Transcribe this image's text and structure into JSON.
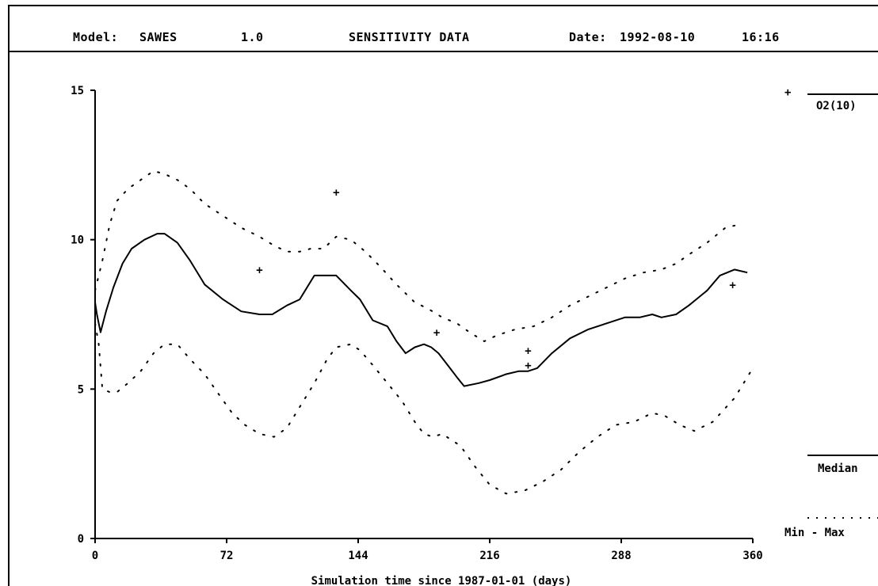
{
  "header": {
    "model_label": "Model:",
    "model_name": "SAWES",
    "version": "1.0",
    "title": "SENSITIVITY DATA",
    "date_label": "Date:",
    "date_value": "1992-08-10",
    "time_value": "16:16"
  },
  "chart_data": {
    "type": "line",
    "title": "SENSITIVITY DATA",
    "xlabel": "Simulation time since 1987-01-01 (days)",
    "ylabel": "",
    "xlim": [
      0,
      360
    ],
    "ylim": [
      0,
      15
    ],
    "xticks": [
      "0",
      "72",
      "144",
      "216",
      "288",
      "360"
    ],
    "yticks": [
      "0",
      "5",
      "10",
      "15"
    ],
    "grid": false,
    "legend_position": "right",
    "legend_entries": [
      {
        "label": "O2(10)",
        "marker": "+"
      },
      {
        "label": "Median",
        "style": "solid"
      },
      {
        "label": "Min - Max",
        "style": "dotted"
      }
    ],
    "series": [
      {
        "name": "Median",
        "style": "solid",
        "x": [
          0,
          1,
          3,
          6,
          10,
          15,
          20,
          27,
          34,
          38,
          45,
          52,
          60,
          70,
          80,
          90,
          97,
          105,
          112,
          120,
          127,
          132,
          140,
          145,
          152,
          160,
          165,
          170,
          175,
          180,
          184,
          188,
          193,
          198,
          202,
          210,
          216,
          225,
          232,
          237,
          242,
          250,
          260,
          270,
          280,
          290,
          298,
          305,
          310,
          318,
          325,
          335,
          342,
          350,
          357
        ],
        "y": [
          7.9,
          7.5,
          6.9,
          7.6,
          8.4,
          9.2,
          9.7,
          10.0,
          10.2,
          10.2,
          9.9,
          9.3,
          8.5,
          8.0,
          7.6,
          7.5,
          7.5,
          7.8,
          8.0,
          8.8,
          8.8,
          8.8,
          8.3,
          8.0,
          7.3,
          7.1,
          6.6,
          6.2,
          6.4,
          6.5,
          6.4,
          6.2,
          5.8,
          5.4,
          5.1,
          5.2,
          5.3,
          5.5,
          5.6,
          5.6,
          5.7,
          6.2,
          6.7,
          7.0,
          7.2,
          7.4,
          7.4,
          7.5,
          7.4,
          7.5,
          7.8,
          8.3,
          8.8,
          9.0,
          8.9
        ]
      },
      {
        "name": "Min",
        "style": "dotted",
        "x": [
          0,
          2,
          4,
          8,
          12,
          18,
          25,
          32,
          38,
          45,
          52,
          60,
          68,
          75,
          82,
          90,
          98,
          105,
          112,
          120,
          127,
          132,
          140,
          145,
          152,
          160,
          168,
          175,
          180,
          185,
          190,
          195,
          200,
          208,
          216,
          225,
          235,
          245,
          255,
          265,
          275,
          285,
          295,
          305,
          312,
          320,
          328,
          338,
          350,
          360
        ],
        "y": [
          7.2,
          6.5,
          5.0,
          4.9,
          4.9,
          5.2,
          5.6,
          6.2,
          6.5,
          6.5,
          6.0,
          5.5,
          4.8,
          4.2,
          3.8,
          3.5,
          3.4,
          3.7,
          4.4,
          5.2,
          6.0,
          6.4,
          6.5,
          6.3,
          5.8,
          5.2,
          4.6,
          3.9,
          3.5,
          3.4,
          3.5,
          3.3,
          3.1,
          2.4,
          1.8,
          1.5,
          1.6,
          1.9,
          2.3,
          2.9,
          3.4,
          3.8,
          3.9,
          4.2,
          4.1,
          3.8,
          3.6,
          3.9,
          4.7,
          5.7
        ]
      },
      {
        "name": "Max",
        "style": "dotted",
        "x": [
          0,
          4,
          8,
          12,
          18,
          25,
          32,
          38,
          45,
          52,
          60,
          70,
          80,
          90,
          98,
          105,
          112,
          118,
          125,
          132,
          140,
          148,
          156,
          165,
          175,
          182,
          190,
          198,
          205,
          213,
          220,
          230,
          240,
          250,
          260,
          270,
          280,
          290,
          300,
          310,
          318,
          325,
          335,
          345,
          352
        ],
        "y": [
          8.3,
          9.3,
          10.5,
          11.3,
          11.7,
          12.0,
          12.3,
          12.2,
          12.0,
          11.7,
          11.2,
          10.8,
          10.4,
          10.1,
          9.8,
          9.6,
          9.6,
          9.7,
          9.7,
          10.1,
          10.0,
          9.6,
          9.1,
          8.5,
          7.9,
          7.7,
          7.4,
          7.2,
          6.9,
          6.6,
          6.8,
          7.0,
          7.1,
          7.4,
          7.8,
          8.1,
          8.4,
          8.7,
          8.9,
          9.0,
          9.2,
          9.5,
          9.9,
          10.4,
          10.5
        ]
      },
      {
        "name": "O2(10)",
        "style": "marker",
        "x": [
          90,
          132,
          187,
          237,
          237,
          349
        ],
        "y": [
          9.0,
          11.6,
          6.9,
          6.3,
          5.8,
          8.5
        ]
      }
    ]
  }
}
